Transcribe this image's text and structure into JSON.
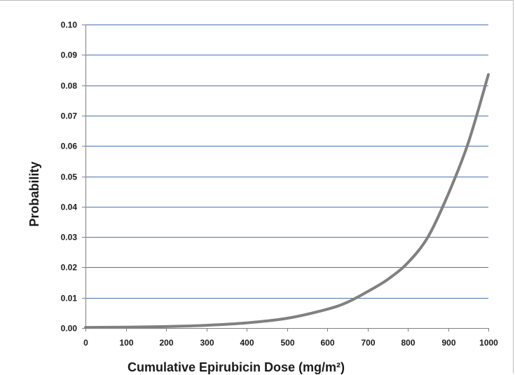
{
  "chart_data": {
    "type": "line",
    "title": "",
    "xlabel": "Cumulative Epirubicin Dose (mg/m²)",
    "ylabel": "Probability",
    "xlim": [
      0,
      1000
    ],
    "ylim": [
      0,
      0.1
    ],
    "x_ticks": [
      "0",
      "100",
      "200",
      "300",
      "400",
      "500",
      "600",
      "700",
      "800",
      "900",
      "1000"
    ],
    "y_ticks": [
      "0.00",
      "0.01",
      "0.02",
      "0.03",
      "0.04",
      "0.05",
      "0.06",
      "0.07",
      "0.08",
      "0.09",
      "0.10"
    ],
    "grid": "horizontal",
    "colors": {
      "line": "#808080",
      "grid": "#4a72b8",
      "axis": "#7f7f7f",
      "text": "#1a1a1a"
    },
    "series": [
      {
        "x": [
          0,
          100,
          200,
          300,
          400,
          500,
          600,
          650,
          700,
          750,
          800,
          850,
          900,
          950,
          1000
        ],
        "values": [
          0.0002,
          0.0003,
          0.0005,
          0.0009,
          0.0017,
          0.0032,
          0.0062,
          0.0085,
          0.012,
          0.016,
          0.0215,
          0.03,
          0.044,
          0.061,
          0.0835
        ]
      }
    ]
  }
}
